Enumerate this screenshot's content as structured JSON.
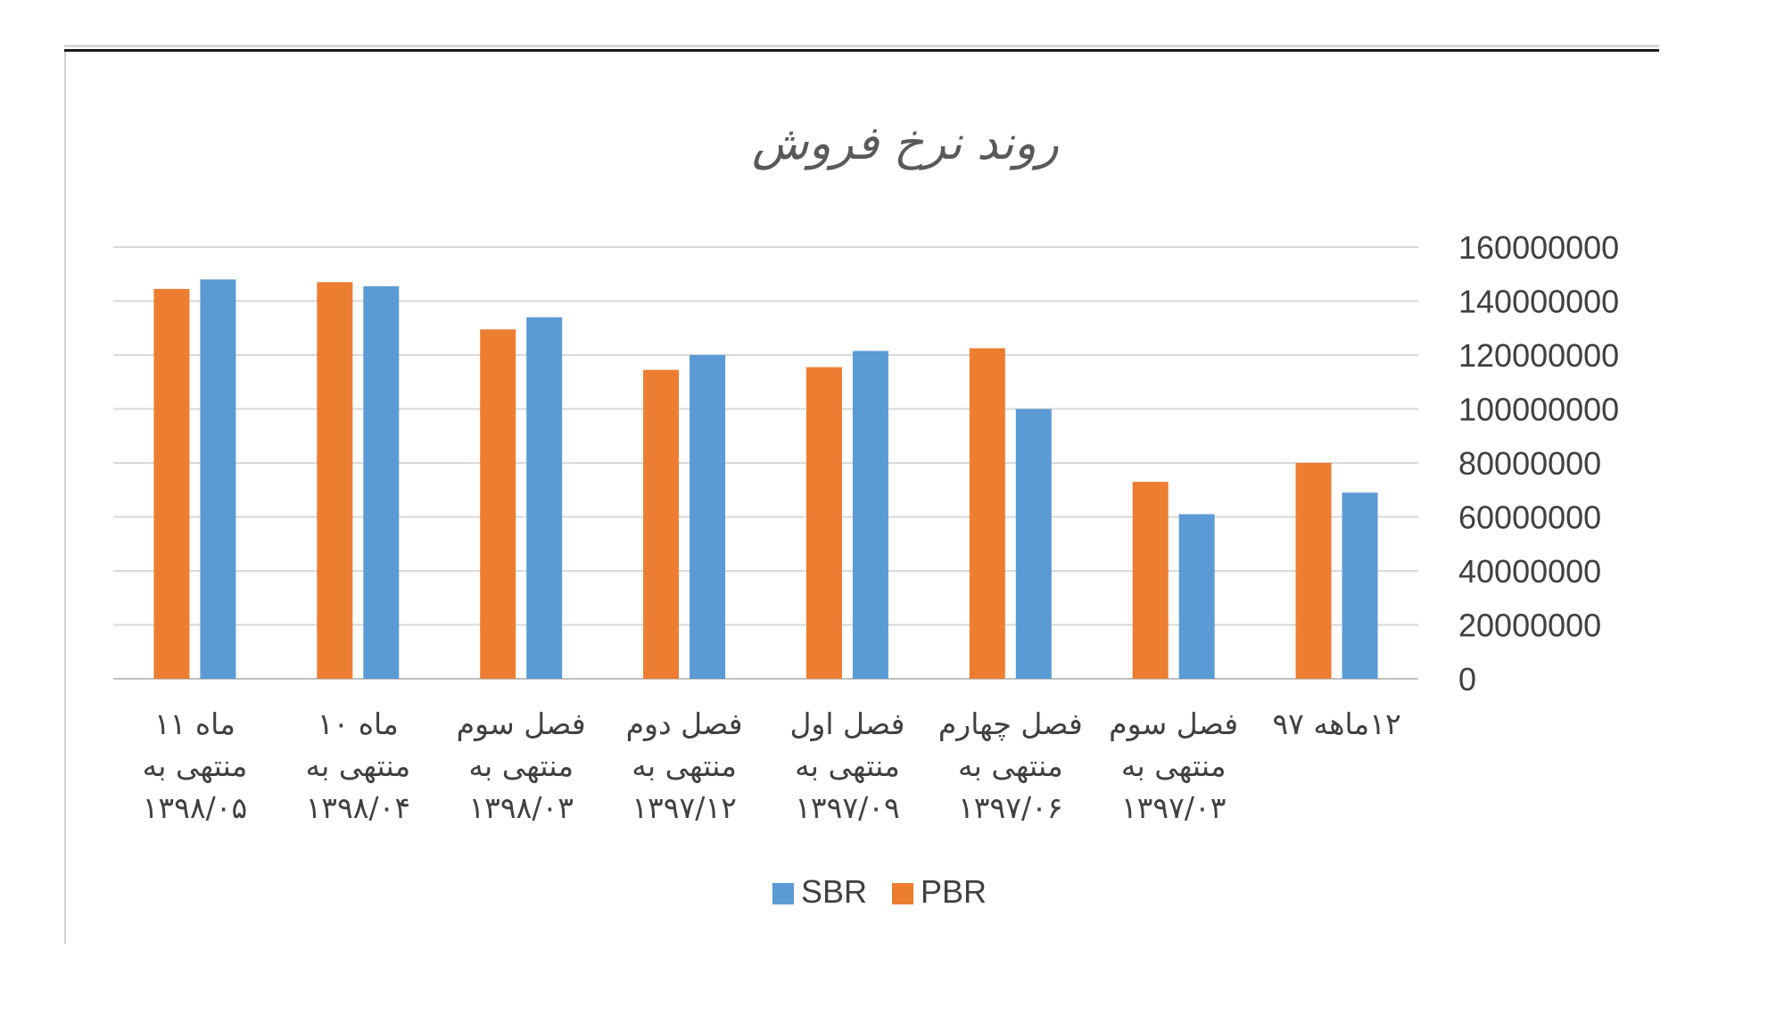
{
  "chart_data": {
    "type": "bar",
    "title": "روند نرخ فروش",
    "xlabel": "",
    "ylabel": "",
    "ylim": [
      0,
      160000000
    ],
    "yticks": [
      "0",
      "20000000",
      "40000000",
      "60000000",
      "80000000",
      "100000000",
      "120000000",
      "140000000",
      "160000000"
    ],
    "y_axis_position": "right",
    "category_order": "right-to-left",
    "grid": true,
    "legend_position": "bottom",
    "categories": [
      [
        "۱۲ماهه ۹۷"
      ],
      [
        "فصل سوم",
        "منتهی به",
        "۱۳۹۷/۰۳"
      ],
      [
        "فصل چهارم",
        "منتهی به",
        "۱۳۹۷/۰۶"
      ],
      [
        "فصل اول",
        "منتهی به",
        "۱۳۹۷/۰۹"
      ],
      [
        "فصل دوم",
        "منتهی به",
        "۱۳۹۷/۱۲"
      ],
      [
        "فصل سوم",
        "منتهی به",
        "۱۳۹۸/۰۳"
      ],
      [
        "ماه ۱۰",
        "منتهی به",
        "۱۳۹۸/۰۴"
      ],
      [
        "ماه ۱۱",
        "منتهی به",
        "۱۳۹۸/۰۵"
      ]
    ],
    "series": [
      {
        "name": "PBR",
        "color": "#ED7D31",
        "values": [
          80000000,
          73000000,
          122500000,
          115500000,
          114500000,
          129500000,
          147000000,
          144500000
        ]
      },
      {
        "name": "SBR",
        "color": "#5B9BD5",
        "values": [
          69000000,
          61000000,
          100000000,
          121500000,
          120000000,
          134000000,
          145500000,
          148000000
        ]
      }
    ]
  }
}
